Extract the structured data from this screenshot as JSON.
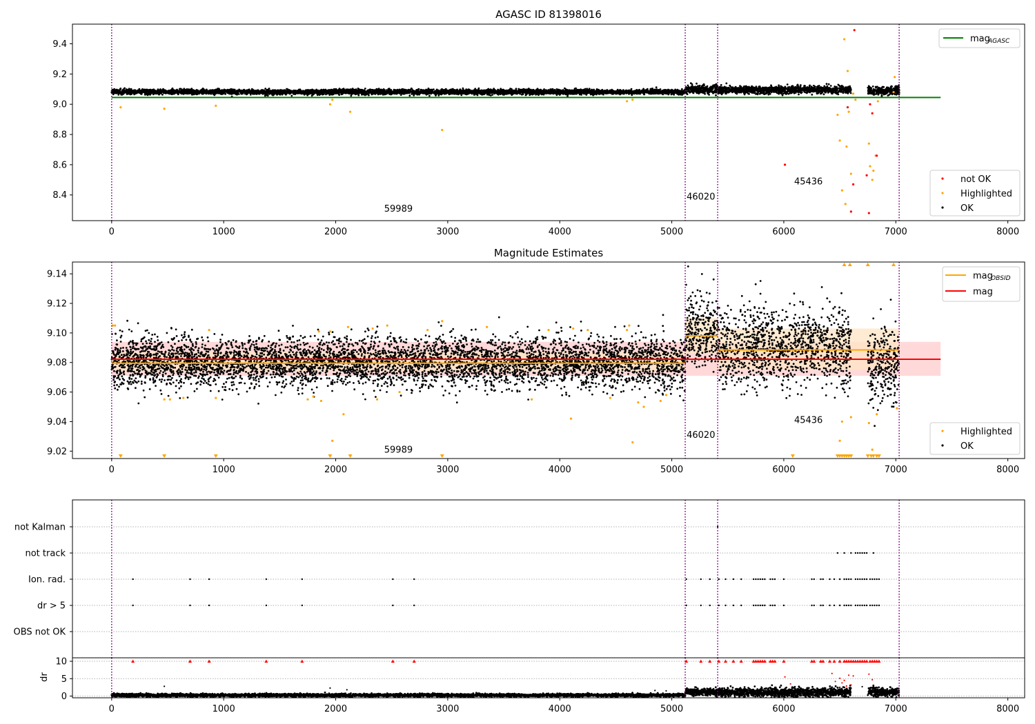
{
  "colors": {
    "ok": "#000000",
    "not_ok": "#ff0000",
    "highlighted": "#ffa500",
    "mag_agasc": "#008000",
    "mag": "#ff0000",
    "mag_obsid": "#ffa500",
    "vline": "#800080",
    "band_red": "#ffcccc",
    "band_orange": "#ffe4c4"
  },
  "chart_data": [
    {
      "id": "top",
      "type": "scatter",
      "title": "AGASC ID 81398016",
      "xlim": [
        -350,
        8150
      ],
      "ylim": [
        8.23,
        9.53
      ],
      "xticks": [
        0,
        1000,
        2000,
        3000,
        4000,
        5000,
        6000,
        7000,
        8000
      ],
      "yticks": [
        8.4,
        8.6,
        8.8,
        9.0,
        9.2,
        9.4
      ],
      "ytick_labels": [
        "8.4",
        "8.6",
        "8.8",
        "9.0",
        "9.2",
        "9.4"
      ],
      "vlines": [
        0,
        5120,
        5410,
        7030
      ],
      "obsid_labels": [
        {
          "text": "59989",
          "x": 2560,
          "y": 8.29
        },
        {
          "text": "46020",
          "x": 5260,
          "y": 8.37
        },
        {
          "text": "45436",
          "x": 6220,
          "y": 8.47
        }
      ],
      "lines": [
        {
          "name": "mag",
          "sub": "AGASC",
          "x": [
            0,
            7400
          ],
          "y": [
            9.045,
            9.045
          ],
          "color": "mag_agasc"
        }
      ],
      "ok_segments": [
        {
          "x0": 0,
          "x1": 5120,
          "center": 9.082,
          "spread": 0.008
        },
        {
          "x0": 5120,
          "x1": 5410,
          "center": 9.098,
          "spread": 0.015
        },
        {
          "x0": 5410,
          "x1": 6600,
          "center": 9.095,
          "spread": 0.012
        },
        {
          "x0": 6750,
          "x1": 7030,
          "center": 9.09,
          "spread": 0.014
        }
      ],
      "highlighted": {
        "x": [
          80,
          470,
          930,
          1950,
          1970,
          2130,
          2950,
          4600,
          4650,
          6480,
          6500,
          6520,
          6540,
          6550,
          6560,
          6570,
          6580,
          6600,
          6620,
          6640,
          6760,
          6770,
          6790,
          6800,
          6820,
          6840,
          6980,
          6990
        ],
        "y": [
          8.98,
          8.97,
          8.99,
          9.0,
          9.03,
          8.95,
          8.83,
          9.02,
          9.03,
          8.93,
          8.76,
          8.43,
          9.43,
          8.34,
          8.72,
          9.22,
          8.95,
          8.54,
          9.07,
          9.03,
          8.74,
          8.59,
          8.5,
          8.56,
          8.66,
          9.02,
          9.08,
          9.18
        ]
      },
      "not_ok": {
        "x": [
          6010,
          6570,
          6600,
          6620,
          6630,
          6740,
          6760,
          6770,
          6790,
          6830
        ],
        "y": [
          8.6,
          8.98,
          8.29,
          8.47,
          9.49,
          8.53,
          8.28,
          9.0,
          8.94,
          8.66
        ]
      },
      "legends": [
        {
          "pos": "top-right",
          "items": [
            {
              "kind": "line",
              "color": "mag_agasc",
              "label": "mag",
              "sub": "AGASC"
            }
          ]
        },
        {
          "pos": "bottom-right",
          "items": [
            {
              "kind": "dot",
              "color": "not_ok",
              "label": "not OK"
            },
            {
              "kind": "dot",
              "color": "highlighted",
              "label": "Highlighted"
            },
            {
              "kind": "dot",
              "color": "ok",
              "label": "OK"
            }
          ]
        }
      ]
    },
    {
      "id": "middle",
      "type": "scatter",
      "title": "Magnitude Estimates",
      "xlim": [
        -350,
        8150
      ],
      "ylim": [
        9.015,
        9.148
      ],
      "xticks": [
        0,
        1000,
        2000,
        3000,
        4000,
        5000,
        6000,
        7000,
        8000
      ],
      "yticks": [
        9.02,
        9.04,
        9.06,
        9.08,
        9.1,
        9.12,
        9.14
      ],
      "ytick_labels": [
        "9.02",
        "9.04",
        "9.06",
        "9.08",
        "9.10",
        "9.12",
        "9.14"
      ],
      "vlines": [
        0,
        5120,
        5410,
        7030
      ],
      "obsid_labels": [
        {
          "text": "59989",
          "x": 2560,
          "y": 9.019
        },
        {
          "text": "46020",
          "x": 5260,
          "y": 9.029
        },
        {
          "text": "45436",
          "x": 6220,
          "y": 9.039
        }
      ],
      "bands": [
        {
          "x0": 0,
          "x1": 7400,
          "y0": 9.071,
          "y1": 9.094,
          "color": "band_red"
        },
        {
          "x0": 0,
          "x1": 5120,
          "y0": 9.074,
          "y1": 9.087,
          "color": "band_orange"
        },
        {
          "x0": 5120,
          "x1": 5410,
          "y0": 9.086,
          "y1": 9.11,
          "color": "band_orange"
        },
        {
          "x0": 5410,
          "x1": 7030,
          "y0": 9.075,
          "y1": 9.103,
          "color": "band_orange"
        }
      ],
      "lines": [
        {
          "name": "mag",
          "sub": "OBSID",
          "x": [
            0,
            5120
          ],
          "y": [
            9.0795,
            9.0795
          ],
          "color": "mag_obsid"
        },
        {
          "name": "mag",
          "sub": "OBSID",
          "x": [
            5120,
            5410
          ],
          "y": [
            9.098,
            9.098
          ],
          "color": "mag_obsid"
        },
        {
          "name": "mag",
          "sub": "OBSID",
          "x": [
            5410,
            7030
          ],
          "y": [
            9.0885,
            9.0885
          ],
          "color": "mag_obsid"
        },
        {
          "name": "mag",
          "sub": "",
          "x": [
            0,
            7400
          ],
          "y": [
            9.0822,
            9.0822
          ],
          "color": "mag"
        }
      ],
      "ok_segments": [
        {
          "x0": 0,
          "x1": 5120,
          "center": 9.08,
          "spread": 0.0085
        },
        {
          "x0": 5120,
          "x1": 5410,
          "center": 9.1,
          "spread": 0.012
        },
        {
          "x0": 5410,
          "x1": 6600,
          "center": 9.09,
          "spread": 0.013
        },
        {
          "x0": 6750,
          "x1": 7030,
          "center": 9.08,
          "spread": 0.013
        }
      ],
      "highlighted": {
        "x": [
          10,
          30,
          470,
          520,
          640,
          870,
          930,
          1750,
          1800,
          1850,
          1870,
          1950,
          1970,
          2070,
          2110,
          2330,
          2370,
          2460,
          2570,
          2820,
          2950,
          3350,
          3750,
          3900,
          4100,
          4120,
          4250,
          4450,
          4600,
          4620,
          4650,
          4700,
          4750,
          4900,
          4950,
          6500,
          6520,
          6600,
          6760,
          6790,
          6830,
          7010
        ],
        "y": [
          9.105,
          9.105,
          9.055,
          9.055,
          9.056,
          9.102,
          9.056,
          9.055,
          9.057,
          9.101,
          9.054,
          9.101,
          9.027,
          9.045,
          9.104,
          9.103,
          9.055,
          9.105,
          9.06,
          9.102,
          9.108,
          9.104,
          9.055,
          9.102,
          9.042,
          9.103,
          9.102,
          9.056,
          9.102,
          9.105,
          9.026,
          9.053,
          9.05,
          9.054,
          9.058,
          9.027,
          9.04,
          9.043,
          9.039,
          9.021,
          9.045,
          9.049
        ]
      },
      "clip_low_x": [
        80,
        470,
        930,
        1950,
        2130,
        2950,
        6080,
        6480,
        6500,
        6520,
        6540,
        6560,
        6580,
        6600,
        6750,
        6780,
        6800,
        6830,
        6850
      ],
      "clip_high_x": [
        6540,
        6590,
        6750,
        6980
      ],
      "legends": [
        {
          "pos": "top-right",
          "items": [
            {
              "kind": "line",
              "color": "mag_obsid",
              "label": "mag",
              "sub": "OBSID"
            },
            {
              "kind": "line",
              "color": "mag",
              "label": "mag",
              "sub": ""
            }
          ]
        },
        {
          "pos": "bottom-right",
          "items": [
            {
              "kind": "dot",
              "color": "highlighted",
              "label": "Highlighted"
            },
            {
              "kind": "dot",
              "color": "ok",
              "label": "OK"
            }
          ]
        }
      ]
    },
    {
      "id": "flags",
      "type": "scatter",
      "xlim": [
        -350,
        8150
      ],
      "categories": [
        "not Kalman",
        "not track",
        "Ion. rad.",
        "dr > 5",
        "OBS not OK"
      ],
      "vlines": [
        0,
        5120,
        5410,
        7030
      ],
      "flag_points": {
        "not Kalman": [
          5410
        ],
        "not track": [
          6480,
          6540,
          6600,
          6640,
          6660,
          6680,
          6700,
          6720,
          6740,
          6800
        ],
        "Ion. rad.": [
          190,
          700,
          870,
          1380,
          1700,
          2510,
          2700,
          5130,
          5260,
          5340,
          5420,
          5480,
          5550,
          5620,
          5730,
          5750,
          5770,
          5790,
          5810,
          5830,
          5880,
          5900,
          5920,
          6000,
          6250,
          6270,
          6330,
          6350,
          6410,
          6450,
          6500,
          6540,
          6560,
          6580,
          6600,
          6640,
          6660,
          6680,
          6700,
          6720,
          6740,
          6770,
          6790,
          6810,
          6830,
          6850
        ],
        "dr > 5": [
          190,
          700,
          870,
          1380,
          1700,
          2510,
          2700,
          5130,
          5260,
          5340,
          5420,
          5480,
          5550,
          5620,
          5730,
          5750,
          5770,
          5790,
          5810,
          5830,
          5880,
          5900,
          5920,
          6000,
          6250,
          6270,
          6330,
          6350,
          6410,
          6450,
          6500,
          6540,
          6560,
          6580,
          6600,
          6640,
          6660,
          6680,
          6700,
          6720,
          6740,
          6770,
          6790,
          6810,
          6830,
          6850
        ],
        "OBS not OK": []
      }
    },
    {
      "id": "dr",
      "type": "scatter",
      "ylabel": "dr",
      "xlim": [
        -350,
        8150
      ],
      "ylim": [
        -0.5,
        11
      ],
      "xticks": [
        0,
        1000,
        2000,
        3000,
        4000,
        5000,
        6000,
        7000,
        8000
      ],
      "yticks": [
        0,
        5,
        10
      ],
      "vlines": [
        0,
        5120,
        5410,
        7030
      ],
      "baseline_segments": [
        {
          "x0": 0,
          "x1": 5120,
          "center": 0.25,
          "spread": 0.2
        },
        {
          "x0": 5120,
          "x1": 5410,
          "center": 1.1,
          "spread": 0.5
        },
        {
          "x0": 5410,
          "x1": 6600,
          "center": 1.1,
          "spread": 0.6
        },
        {
          "x0": 6750,
          "x1": 7030,
          "center": 1.1,
          "spread": 0.6
        }
      ],
      "ok_extra": {
        "x": [
          470,
          1950,
          2100,
          4850,
          4950,
          5500,
          5800,
          6100,
          6500,
          6600,
          6700,
          6780
        ],
        "y": [
          2.8,
          2.3,
          1.8,
          1.6,
          1.5,
          2.4,
          2.6,
          2.0,
          2.5,
          2.2,
          2.7,
          2.3
        ]
      },
      "red_clipped_x": [
        190,
        700,
        870,
        1380,
        1700,
        2510,
        2700,
        5130,
        5260,
        5340,
        5420,
        5480,
        5550,
        5620,
        5730,
        5750,
        5770,
        5790,
        5810,
        5830,
        5880,
        5900,
        5920,
        6000,
        6250,
        6270,
        6330,
        6350,
        6410,
        6450,
        6500,
        6540,
        6560,
        6580,
        6600,
        6620,
        6640,
        6660,
        6680,
        6700,
        6720,
        6740,
        6770,
        6790,
        6810,
        6830,
        6850
      ],
      "red_points": {
        "x": [
          6010,
          6060,
          6430,
          6460,
          6500,
          6520,
          6540,
          6560,
          6580,
          6600,
          6620,
          6760,
          6790
        ],
        "y": [
          5.5,
          3.5,
          6.5,
          4.2,
          5.1,
          3.8,
          4.5,
          2.9,
          6.0,
          3.2,
          5.8,
          6.3,
          4.7
        ]
      }
    }
  ]
}
